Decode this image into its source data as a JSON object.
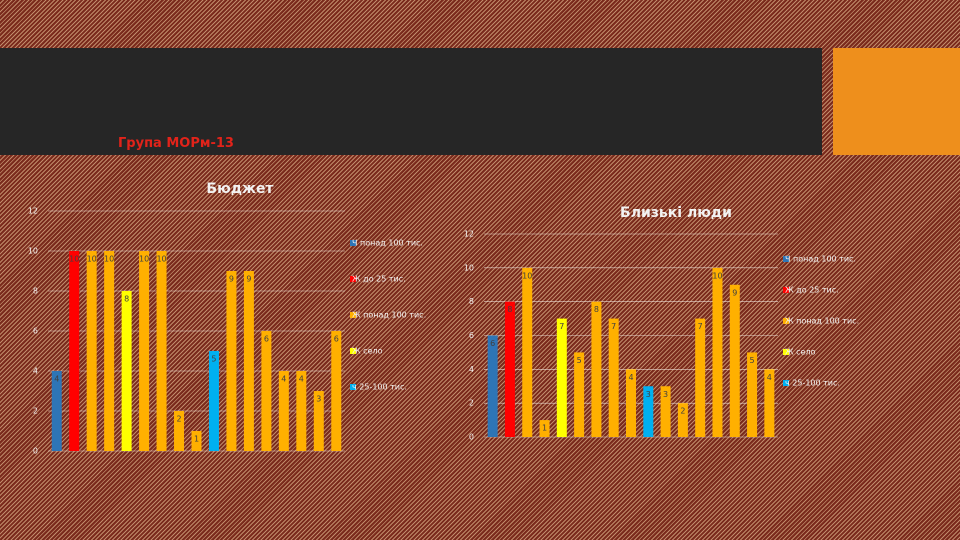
{
  "subtitle": "Група МОРм-13",
  "chart_data": [
    {
      "type": "bar",
      "title": "Бюджет",
      "values": [
        4,
        10,
        10,
        10,
        8,
        10,
        10,
        2,
        1,
        5,
        9,
        9,
        6,
        4,
        4,
        3,
        6
      ],
      "bar_colors": [
        "#2e75b6",
        "#ff0000",
        "#ffb000",
        "#ffb000",
        "#ffff00",
        "#ffb000",
        "#ffb000",
        "#ffb000",
        "#ffb000",
        "#00b0f0",
        "#ffb000",
        "#ffb000",
        "#ffb000",
        "#ffb000",
        "#ffb000",
        "#ffb000",
        "#ffb000"
      ],
      "legend": [
        {
          "name": "Ч понад 100 тис.",
          "color": "#2e75b6"
        },
        {
          "name": "Ж до 25 тис.",
          "color": "#ff0000"
        },
        {
          "name": "Ж понад 100 тис.",
          "color": "#ffb000"
        },
        {
          "name": "Ж село",
          "color": "#ffff00"
        },
        {
          "name": "ч 25-100 тис.",
          "color": "#00b0f0"
        }
      ],
      "ylim": [
        0,
        12
      ],
      "yticks": [
        0,
        2,
        4,
        6,
        8,
        10,
        12
      ],
      "grid": true
    },
    {
      "type": "bar",
      "title": "Близькі люди",
      "values": [
        6,
        8,
        10,
        1,
        7,
        5,
        8,
        7,
        4,
        3,
        3,
        2,
        7,
        10,
        9,
        5,
        4
      ],
      "bar_colors": [
        "#2e75b6",
        "#ff0000",
        "#ffb000",
        "#ffb000",
        "#ffff00",
        "#ffb000",
        "#ffb000",
        "#ffb000",
        "#ffb000",
        "#00b0f0",
        "#ffb000",
        "#ffb000",
        "#ffb000",
        "#ffb000",
        "#ffb000",
        "#ffb000",
        "#ffb000"
      ],
      "legend": [
        {
          "name": "Ч понад 100 тис.",
          "color": "#2e75b6"
        },
        {
          "name": "Ж до 25 тис.",
          "color": "#ff0000"
        },
        {
          "name": "Ж понад 100 тис.",
          "color": "#ffb000"
        },
        {
          "name": "Ж село",
          "color": "#ffff00"
        },
        {
          "name": "ч 25-100 тис.",
          "color": "#00b0f0"
        }
      ],
      "ylim": [
        0,
        12
      ],
      "yticks": [
        0,
        2,
        4,
        6,
        8,
        10,
        12
      ],
      "grid": true
    }
  ]
}
